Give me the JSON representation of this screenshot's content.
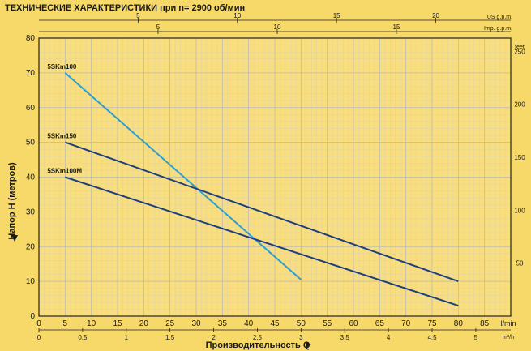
{
  "chart_data": {
    "type": "line",
    "title": "ТЕХНИЧЕСКИЕ ХАРАКТЕРИСТИКИ при n= 2900 об/мин",
    "ylabel": "Напор Н   (метров)",
    "xlabel": "Производительность Q",
    "x_unit": "l/min",
    "m3h_unit": "m³/h",
    "feet_unit": "feet",
    "us_unit": "US g.p.m.",
    "imp_unit": "Imp. g.p.m.",
    "xlim": [
      0,
      90
    ],
    "ylim": [
      0,
      80
    ],
    "x_ticks": [
      "0",
      "5",
      "10",
      "15",
      "20",
      "25",
      "30",
      "35",
      "40",
      "45",
      "50",
      "55",
      "60",
      "65",
      "70",
      "75",
      "80",
      "85"
    ],
    "y_ticks": [
      "0",
      "10",
      "20",
      "30",
      "40",
      "50",
      "60",
      "70",
      "80"
    ],
    "m3h_ticks": [
      "0",
      "0.5",
      "1",
      "1.5",
      "2",
      "2.5",
      "3",
      "3.5",
      "4",
      "4.5",
      "5"
    ],
    "feet_ticks": [
      "50",
      "100",
      "150",
      "200",
      "250"
    ],
    "us_ticks": [
      "5",
      "10",
      "15",
      "20"
    ],
    "imp_ticks": [
      "5",
      "10",
      "15"
    ],
    "series": [
      {
        "name": "5SKm100",
        "color": "#2a9fd0",
        "points": [
          [
            5,
            70
          ],
          [
            50,
            10.5
          ]
        ]
      },
      {
        "name": "5SKm150",
        "color": "#1d3f7e",
        "points": [
          [
            5,
            50
          ],
          [
            80,
            10
          ]
        ]
      },
      {
        "name": "5SKm100M",
        "color": "#1d3f7e",
        "points": [
          [
            5,
            40
          ],
          [
            80,
            3
          ]
        ]
      }
    ],
    "grid": true
  }
}
